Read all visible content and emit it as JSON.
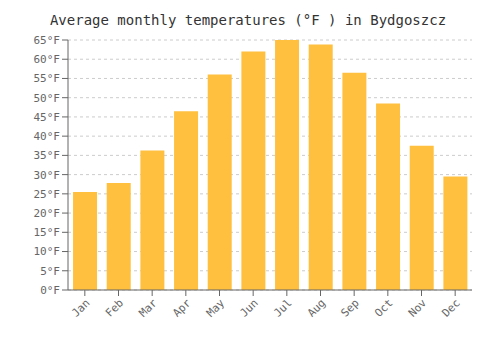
{
  "chart_data": {
    "type": "bar",
    "title": "Average monthly temperatures (°F ) in Bydgoszcz",
    "categories": [
      "Jan",
      "Feb",
      "Mar",
      "Apr",
      "May",
      "Jun",
      "Jul",
      "Aug",
      "Sep",
      "Oct",
      "Nov",
      "Dec"
    ],
    "values": [
      25.5,
      27.8,
      36.3,
      46.5,
      56.0,
      62.0,
      65.0,
      63.8,
      56.5,
      48.5,
      37.5,
      29.5
    ],
    "color": "#FFC040",
    "ylim": [
      0,
      65
    ],
    "yticks": [
      {
        "value": 0,
        "label": "0°F"
      },
      {
        "value": 5,
        "label": "5°F"
      },
      {
        "value": 10,
        "label": "10°F"
      },
      {
        "value": 15,
        "label": "15°F"
      },
      {
        "value": 20,
        "label": "20°F"
      },
      {
        "value": 25,
        "label": "25°F"
      },
      {
        "value": 30,
        "label": "30°F"
      },
      {
        "value": 35,
        "label": "35°F"
      },
      {
        "value": 40,
        "label": "40°F"
      },
      {
        "value": 45,
        "label": "45°F"
      },
      {
        "value": 50,
        "label": "50°F"
      },
      {
        "value": 55,
        "label": "55°F"
      },
      {
        "value": 60,
        "label": "60°F"
      },
      {
        "value": 65,
        "label": "65°F"
      }
    ],
    "grid": true
  }
}
